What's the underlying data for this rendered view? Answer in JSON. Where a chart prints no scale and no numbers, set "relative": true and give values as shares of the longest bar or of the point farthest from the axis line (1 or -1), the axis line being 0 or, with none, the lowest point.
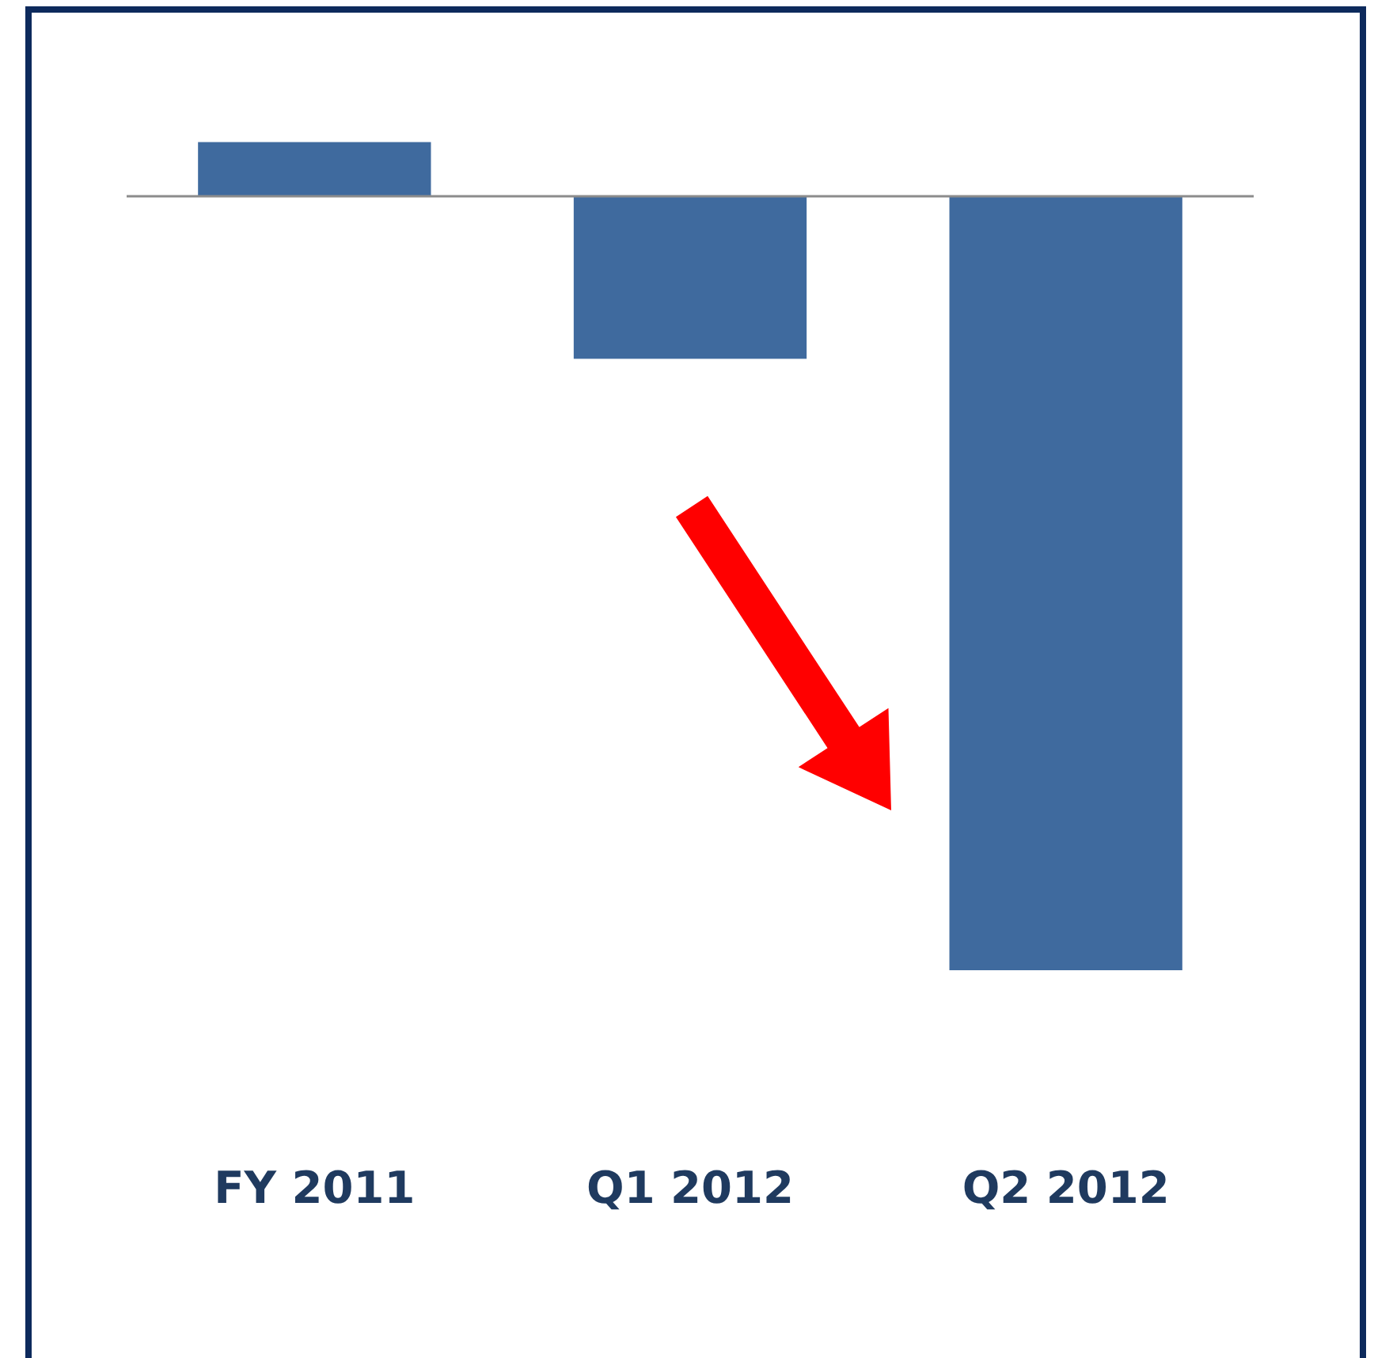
{
  "chart_data": {
    "type": "bar",
    "relative": true,
    "categories": [
      "FY 2011",
      "Q1 2012",
      "Q2 2012"
    ],
    "values": [
      0.07,
      -0.21,
      -1
    ],
    "color": "#3f6a9e"
  }
}
